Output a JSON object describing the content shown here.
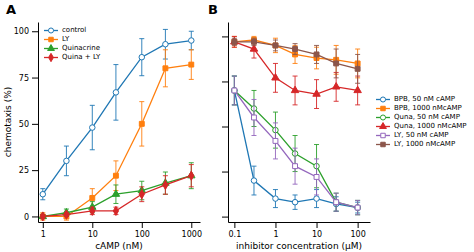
{
  "chart_data": [
    {
      "type": "line",
      "title": "A",
      "xlabel": "cAMP (nM)",
      "ylabel": "chemotaxis (%)",
      "log": "x",
      "legend": "upper left",
      "x": [
        1,
        3,
        10,
        30,
        100,
        300,
        1000
      ],
      "series": [
        {
          "name": "control",
          "marker": "circle-open",
          "values": [
            12,
            30,
            48,
            67,
            86,
            93,
            95
          ],
          "errors": [
            3,
            8,
            12,
            15,
            10,
            8,
            5
          ]
        },
        {
          "name": "LY",
          "marker": "square",
          "values": [
            0,
            0,
            10,
            22,
            50,
            80,
            82
          ],
          "errors": [
            2,
            2,
            5,
            8,
            12,
            10,
            8
          ]
        },
        {
          "name": "Quinacrine",
          "marker": "triangle",
          "values": [
            0,
            2,
            5,
            12,
            14,
            18,
            22
          ],
          "errors": [
            1,
            2,
            3,
            5,
            5,
            6,
            7
          ]
        },
        {
          "name": "Quina + LY",
          "marker": "diamond",
          "values": [
            0,
            1,
            3,
            3,
            12,
            17,
            22
          ],
          "errors": [
            1,
            1,
            2,
            2,
            4,
            5,
            6
          ]
        }
      ],
      "xlim": [
        0.8,
        1500
      ],
      "ylim": [
        -3,
        105
      ],
      "xticks": [
        1,
        10,
        100,
        1000
      ],
      "yticks": [
        0,
        25,
        50,
        75,
        100
      ]
    },
    {
      "type": "line",
      "title": "B",
      "xlabel": "inhibitor concentration (μM)",
      "log": "x",
      "legend": "center right",
      "tick_labels": "x",
      "x": [
        0.1,
        0.3,
        1,
        3,
        10,
        30,
        100
      ],
      "series": [
        {
          "name": "BPB, 50 nM cAMP",
          "marker": "circle-open",
          "values": [
            70,
            20,
            10,
            8,
            10,
            7,
            5
          ],
          "errors": [
            8,
            8,
            5,
            4,
            5,
            4,
            3
          ]
        },
        {
          "name": "BPB, 1000 nMcAMP",
          "marker": "square",
          "values": [
            97,
            98,
            95,
            90,
            88,
            87,
            85
          ],
          "errors": [
            3,
            2,
            4,
            5,
            6,
            8,
            8
          ]
        },
        {
          "name": "Quna, 50 nM cAMP",
          "marker": "circle-open",
          "values": [
            70,
            60,
            48,
            35,
            28,
            8,
            5
          ],
          "errors": [
            8,
            10,
            10,
            10,
            12,
            5,
            4
          ]
        },
        {
          "name": "Quna, 1000 nMcAMP",
          "marker": "triangle",
          "values": [
            97,
            93,
            77,
            70,
            68,
            72,
            70
          ],
          "errors": [
            3,
            5,
            8,
            8,
            8,
            8,
            8
          ]
        },
        {
          "name": "LY, 50 nM cAMP",
          "marker": "square-open",
          "values": [
            70,
            55,
            42,
            28,
            22,
            8,
            5
          ],
          "errors": [
            8,
            10,
            10,
            10,
            10,
            5,
            4
          ]
        },
        {
          "name": "LY, 1000 nMcAMP",
          "marker": "square",
          "values": [
            97,
            97,
            95,
            93,
            90,
            85,
            82
          ],
          "errors": [
            2,
            2,
            3,
            3,
            5,
            8,
            8
          ]
        }
      ],
      "xlim": [
        0.07,
        200
      ],
      "ylim": [
        -3,
        108
      ],
      "xticks": [
        0.1,
        1,
        10,
        100
      ],
      "yticks": [
        0,
        25,
        50,
        75,
        100
      ]
    }
  ]
}
